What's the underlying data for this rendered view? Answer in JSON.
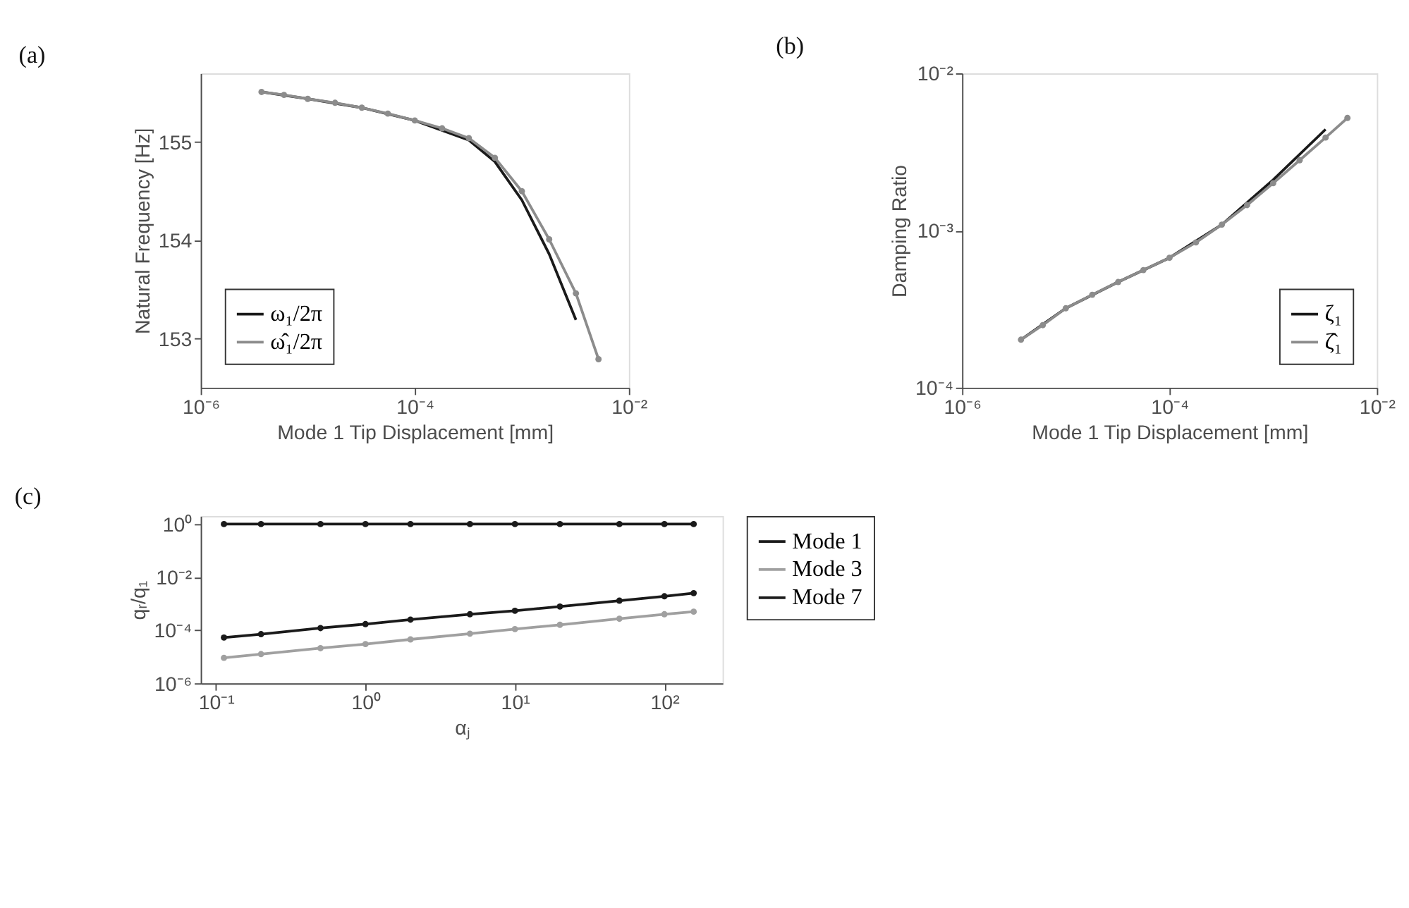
{
  "chart_data": [
    {
      "type": "line",
      "title": "(a)",
      "xlabel": "Mode 1 Tip Displacement [mm]",
      "ylabel": "Natural Frequency [Hz]",
      "log": "x",
      "xlim": [
        1e-06,
        0.01
      ],
      "xticks": [
        {
          "value": 1e-06,
          "label": "10⁻⁶"
        },
        {
          "value": 0.0001,
          "label": "10⁻⁴"
        },
        {
          "value": 0.01,
          "label": "10⁻²"
        }
      ],
      "ylim": [
        152.5,
        155.7
      ],
      "yticks": [
        153,
        154,
        155
      ],
      "grid": false,
      "legend": "bottom left",
      "line_style": "solid",
      "series": [
        {
          "name": "ω₁/2π",
          "color": "#1a1a1a",
          "marker": "none",
          "x": [
            3.7e-06,
            1e-05,
            3.2e-05,
            0.0001,
            0.00032,
            0.00056,
            0.001,
            0.0018,
            0.0032
          ],
          "values": [
            155.51,
            155.44,
            155.35,
            155.22,
            155.02,
            154.8,
            154.41,
            153.86,
            153.19
          ]
        },
        {
          "name": "ω̂₁/2π",
          "color": "#8c8c8c",
          "marker": "circle",
          "x": [
            3.7e-06,
            6e-06,
            1e-05,
            1.8e-05,
            3.2e-05,
            5.6e-05,
            0.0001,
            0.00018,
            0.00032,
            0.00056,
            0.001,
            0.0018,
            0.0032,
            0.0052
          ],
          "values": [
            155.51,
            155.48,
            155.44,
            155.4,
            155.35,
            155.29,
            155.22,
            155.14,
            155.04,
            154.84,
            154.5,
            154.01,
            153.46,
            152.79
          ]
        }
      ]
    },
    {
      "type": "line",
      "title": "(b)",
      "xlabel": "Mode 1 Tip Displacement [mm]",
      "ylabel": "Damping Ratio",
      "log": "xy",
      "xlim": [
        1e-06,
        0.01
      ],
      "xticks": [
        {
          "value": 1e-06,
          "label": "10⁻⁶"
        },
        {
          "value": 0.0001,
          "label": "10⁻⁴"
        },
        {
          "value": 0.01,
          "label": "10⁻²"
        }
      ],
      "ylim": [
        0.0001,
        0.01
      ],
      "yticks": [
        {
          "value": 0.0001,
          "label": "10⁻⁴"
        },
        {
          "value": 0.001,
          "label": "10⁻³"
        },
        {
          "value": 0.01,
          "label": "10⁻²"
        }
      ],
      "grid": false,
      "legend": "bottom right",
      "line_style": "solid",
      "series": [
        {
          "name": "ζ₁",
          "color": "#1a1a1a",
          "marker": "none",
          "x": [
            3.7e-06,
            1e-05,
            3.2e-05,
            0.0001,
            0.00032,
            0.001,
            0.0032
          ],
          "values": [
            0.000202,
            0.00032,
            0.00047,
            0.00067,
            0.00109,
            0.0021,
            0.0044
          ]
        },
        {
          "name": "ζ̂₁",
          "color": "#8c8c8c",
          "marker": "circle",
          "x": [
            3.7e-06,
            6e-06,
            1e-05,
            1.8e-05,
            3.2e-05,
            5.6e-05,
            0.0001,
            0.00018,
            0.00032,
            0.00056,
            0.001,
            0.0018,
            0.0032,
            0.0052
          ],
          "values": [
            0.000202,
            0.00025,
            0.00032,
            0.00039,
            0.00047,
            0.00056,
            0.00067,
            0.00084,
            0.00109,
            0.00145,
            0.002,
            0.0028,
            0.0039,
            0.0052
          ]
        }
      ]
    },
    {
      "type": "line",
      "title": "(c)",
      "xlabel": "αⱼ",
      "ylabel": "qᵣ/q₁",
      "log": "xy",
      "xlim": [
        0.079,
        245
      ],
      "xticks": [
        {
          "value": 0.1,
          "label": "10⁻¹"
        },
        {
          "value": 1,
          "label": "10⁰"
        },
        {
          "value": 10,
          "label": "10¹"
        },
        {
          "value": 100,
          "label": "10²"
        }
      ],
      "ylim": [
        1e-06,
        2
      ],
      "yticks": [
        {
          "value": 1e-06,
          "label": "10⁻⁶"
        },
        {
          "value": 0.0001,
          "label": "10⁻⁴"
        },
        {
          "value": 0.01,
          "label": "10⁻²"
        },
        {
          "value": 1,
          "label": "10⁰"
        }
      ],
      "grid": false,
      "legend": "right",
      "line_style": "solid",
      "x": [
        0.113,
        0.2,
        0.5,
        1,
        2,
        5,
        10,
        20,
        50,
        100,
        157
      ],
      "series": [
        {
          "name": "Mode 1",
          "color": "#1a1a1a",
          "marker": "circle",
          "values": [
            1,
            1,
            1,
            1,
            1,
            1,
            1,
            1,
            1,
            1,
            1
          ]
        },
        {
          "name": "Mode 3",
          "color": "#a0a0a0",
          "marker": "circle",
          "values": [
            9.1e-06,
            1.26e-05,
            2.1e-05,
            3e-05,
            4.5e-05,
            7.4e-05,
            0.00011,
            0.00016,
            0.00027,
            0.0004,
            0.0005
          ]
        },
        {
          "name": "Mode 7",
          "color": "#1a1a1a",
          "marker": "circle",
          "values": [
            5.3e-05,
            7.1e-05,
            0.00012,
            0.00017,
            0.00025,
            0.0004,
            0.00054,
            0.00078,
            0.0013,
            0.0019,
            0.0025
          ]
        }
      ]
    }
  ]
}
